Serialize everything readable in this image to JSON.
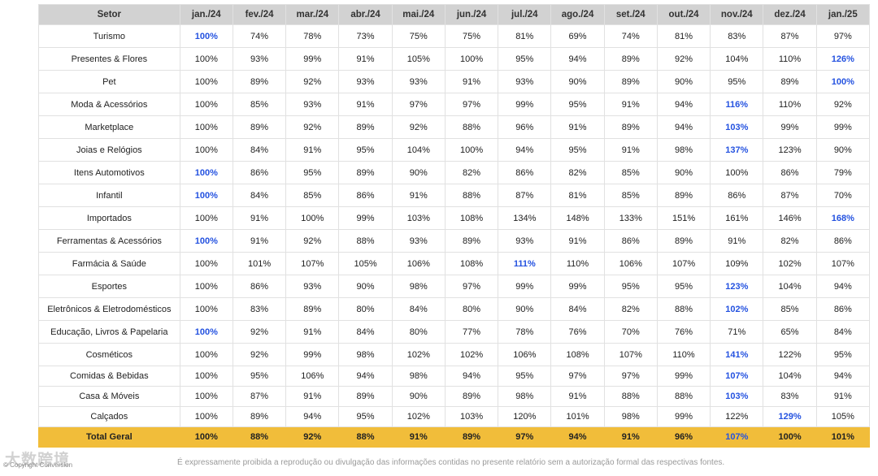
{
  "table": {
    "header": [
      "Setor",
      "jan./24",
      "fev./24",
      "mar./24",
      "abr./24",
      "mai./24",
      "jun./24",
      "jul./24",
      "ago./24",
      "set./24",
      "out./24",
      "nov./24",
      "dez./24",
      "jan./25"
    ],
    "rows": [
      {
        "setor": "Turismo",
        "values": [
          "100%",
          "74%",
          "78%",
          "73%",
          "75%",
          "75%",
          "81%",
          "69%",
          "74%",
          "81%",
          "83%",
          "87%",
          "97%"
        ],
        "highlight": [
          0
        ]
      },
      {
        "setor": "Presentes & Flores",
        "values": [
          "100%",
          "93%",
          "99%",
          "91%",
          "105%",
          "100%",
          "95%",
          "94%",
          "89%",
          "92%",
          "104%",
          "110%",
          "126%"
        ],
        "highlight": [
          12
        ]
      },
      {
        "setor": "Pet",
        "values": [
          "100%",
          "89%",
          "92%",
          "93%",
          "93%",
          "91%",
          "93%",
          "90%",
          "89%",
          "90%",
          "95%",
          "89%",
          "100%"
        ],
        "highlight": [
          12
        ]
      },
      {
        "setor": "Moda & Acessórios",
        "values": [
          "100%",
          "85%",
          "93%",
          "91%",
          "97%",
          "97%",
          "99%",
          "95%",
          "91%",
          "94%",
          "116%",
          "110%",
          "92%"
        ],
        "highlight": [
          10
        ]
      },
      {
        "setor": "Marketplace",
        "values": [
          "100%",
          "89%",
          "92%",
          "89%",
          "92%",
          "88%",
          "96%",
          "91%",
          "89%",
          "94%",
          "103%",
          "99%",
          "99%"
        ],
        "highlight": [
          10
        ]
      },
      {
        "setor": "Joias e Relógios",
        "values": [
          "100%",
          "84%",
          "91%",
          "95%",
          "104%",
          "100%",
          "94%",
          "95%",
          "91%",
          "98%",
          "137%",
          "123%",
          "90%"
        ],
        "highlight": [
          10
        ]
      },
      {
        "setor": "Itens Automotivos",
        "values": [
          "100%",
          "86%",
          "95%",
          "89%",
          "90%",
          "82%",
          "86%",
          "82%",
          "85%",
          "90%",
          "100%",
          "86%",
          "79%"
        ],
        "highlight": [
          0
        ]
      },
      {
        "setor": "Infantil",
        "values": [
          "100%",
          "84%",
          "85%",
          "86%",
          "91%",
          "88%",
          "87%",
          "81%",
          "85%",
          "89%",
          "86%",
          "87%",
          "70%"
        ],
        "highlight": [
          0
        ]
      },
      {
        "setor": "Importados",
        "values": [
          "100%",
          "91%",
          "100%",
          "99%",
          "103%",
          "108%",
          "134%",
          "148%",
          "133%",
          "151%",
          "161%",
          "146%",
          "168%"
        ],
        "highlight": [
          12
        ]
      },
      {
        "setor": "Ferramentas & Acessórios",
        "values": [
          "100%",
          "91%",
          "92%",
          "88%",
          "93%",
          "89%",
          "93%",
          "91%",
          "86%",
          "89%",
          "91%",
          "82%",
          "86%"
        ],
        "highlight": [
          0
        ]
      },
      {
        "setor": "Farmácia & Saúde",
        "values": [
          "100%",
          "101%",
          "107%",
          "105%",
          "106%",
          "108%",
          "111%",
          "110%",
          "106%",
          "107%",
          "109%",
          "102%",
          "107%"
        ],
        "highlight": [
          6
        ]
      },
      {
        "setor": "Esportes",
        "values": [
          "100%",
          "86%",
          "93%",
          "90%",
          "98%",
          "97%",
          "99%",
          "99%",
          "95%",
          "95%",
          "123%",
          "104%",
          "94%"
        ],
        "highlight": [
          10
        ]
      },
      {
        "setor": "Eletrônicos & Eletrodomésticos",
        "values": [
          "100%",
          "83%",
          "89%",
          "80%",
          "84%",
          "80%",
          "90%",
          "84%",
          "82%",
          "88%",
          "102%",
          "85%",
          "86%"
        ],
        "highlight": [
          10
        ]
      },
      {
        "setor": "Educação, Livros & Papelaria",
        "values": [
          "100%",
          "92%",
          "91%",
          "84%",
          "80%",
          "77%",
          "78%",
          "76%",
          "70%",
          "76%",
          "71%",
          "65%",
          "84%"
        ],
        "highlight": [
          0
        ]
      },
      {
        "setor": "Cosméticos",
        "values": [
          "100%",
          "92%",
          "99%",
          "98%",
          "102%",
          "102%",
          "106%",
          "108%",
          "107%",
          "110%",
          "141%",
          "122%",
          "95%"
        ],
        "highlight": [
          10
        ]
      },
      {
        "setor": "Comidas & Bebidas",
        "values": [
          "100%",
          "95%",
          "106%",
          "94%",
          "98%",
          "94%",
          "95%",
          "97%",
          "97%",
          "99%",
          "107%",
          "104%",
          "94%"
        ],
        "highlight": [
          10
        ]
      },
      {
        "setor": "Casa & Móveis",
        "values": [
          "100%",
          "87%",
          "91%",
          "89%",
          "90%",
          "89%",
          "98%",
          "91%",
          "88%",
          "88%",
          "103%",
          "83%",
          "91%"
        ],
        "highlight": [
          10
        ]
      },
      {
        "setor": "Calçados",
        "values": [
          "100%",
          "89%",
          "94%",
          "95%",
          "102%",
          "103%",
          "120%",
          "101%",
          "98%",
          "99%",
          "122%",
          "129%",
          "105%"
        ],
        "highlight": [
          11
        ]
      }
    ],
    "total": {
      "setor": "Total Geral",
      "values": [
        "100%",
        "88%",
        "92%",
        "88%",
        "91%",
        "89%",
        "97%",
        "94%",
        "91%",
        "96%",
        "107%",
        "100%",
        "101%"
      ],
      "highlight": [
        10
      ]
    }
  },
  "colors": {
    "highlight": "#2452e0",
    "header_bg": "#d2d2d2",
    "total_bg": "#f1bd3a"
  },
  "footer": {
    "note": "É expressamente proibida a reprodução ou divulgação das informações contidas no presente relatório sem a autorização formal das respectivas fontes.",
    "copyright": "© Copyright Conversion",
    "watermark": "大数跨境"
  }
}
